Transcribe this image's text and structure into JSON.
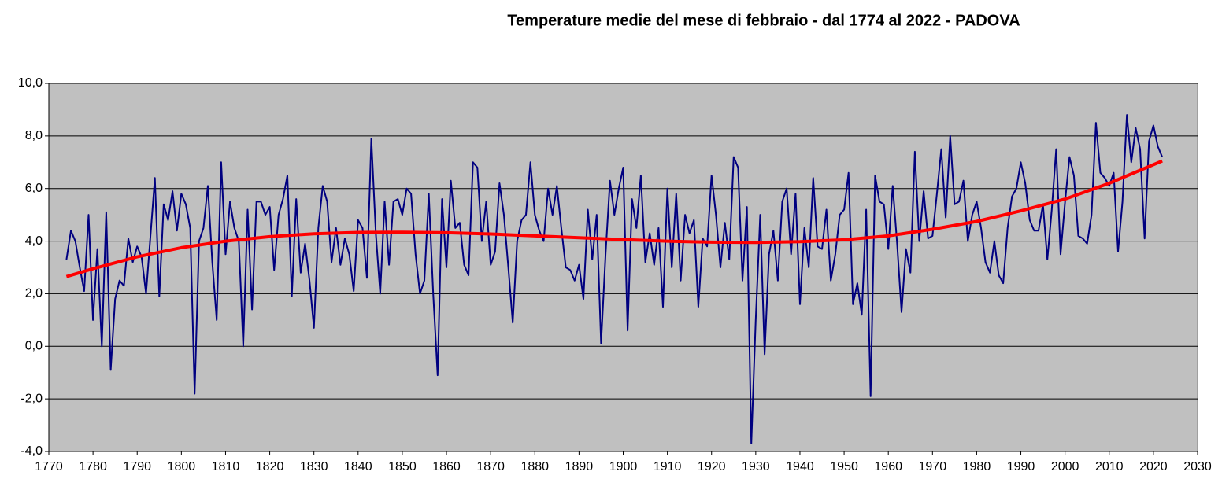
{
  "chart_data": {
    "type": "line",
    "title": "Temperature medie del mese di febbraio - dal 1774 al 2022 - PADOVA",
    "x": [
      1774,
      1775,
      1776,
      1777,
      1778,
      1779,
      1780,
      1781,
      1782,
      1783,
      1784,
      1785,
      1786,
      1787,
      1788,
      1789,
      1790,
      1791,
      1792,
      1793,
      1794,
      1795,
      1796,
      1797,
      1798,
      1799,
      1800,
      1801,
      1802,
      1803,
      1804,
      1805,
      1806,
      1807,
      1808,
      1809,
      1810,
      1811,
      1812,
      1813,
      1814,
      1815,
      1816,
      1817,
      1818,
      1819,
      1820,
      1821,
      1822,
      1823,
      1824,
      1825,
      1826,
      1827,
      1828,
      1829,
      1830,
      1831,
      1832,
      1833,
      1834,
      1835,
      1836,
      1837,
      1838,
      1839,
      1840,
      1841,
      1842,
      1843,
      1844,
      1845,
      1846,
      1847,
      1848,
      1849,
      1850,
      1851,
      1852,
      1853,
      1854,
      1855,
      1856,
      1857,
      1858,
      1859,
      1860,
      1861,
      1862,
      1863,
      1864,
      1865,
      1866,
      1867,
      1868,
      1869,
      1870,
      1871,
      1872,
      1873,
      1874,
      1875,
      1876,
      1877,
      1878,
      1879,
      1880,
      1881,
      1882,
      1883,
      1884,
      1885,
      1886,
      1887,
      1888,
      1889,
      1890,
      1891,
      1892,
      1893,
      1894,
      1895,
      1896,
      1897,
      1898,
      1899,
      1900,
      1901,
      1902,
      1903,
      1904,
      1905,
      1906,
      1907,
      1908,
      1909,
      1910,
      1911,
      1912,
      1913,
      1914,
      1915,
      1916,
      1917,
      1918,
      1919,
      1920,
      1921,
      1922,
      1923,
      1924,
      1925,
      1926,
      1927,
      1928,
      1929,
      1930,
      1931,
      1932,
      1933,
      1934,
      1935,
      1936,
      1937,
      1938,
      1939,
      1940,
      1941,
      1942,
      1943,
      1944,
      1945,
      1946,
      1947,
      1948,
      1949,
      1950,
      1951,
      1952,
      1953,
      1954,
      1955,
      1956,
      1957,
      1958,
      1959,
      1960,
      1961,
      1962,
      1963,
      1964,
      1965,
      1966,
      1967,
      1968,
      1969,
      1970,
      1971,
      1972,
      1973,
      1974,
      1975,
      1976,
      1977,
      1978,
      1979,
      1980,
      1981,
      1982,
      1983,
      1984,
      1985,
      1986,
      1987,
      1988,
      1989,
      1990,
      1991,
      1992,
      1993,
      1994,
      1995,
      1996,
      1997,
      1998,
      1999,
      2000,
      2001,
      2002,
      2003,
      2004,
      2005,
      2006,
      2007,
      2008,
      2009,
      2010,
      2011,
      2012,
      2013,
      2014,
      2015,
      2016,
      2017,
      2018,
      2019,
      2020,
      2021,
      2022
    ],
    "series": [
      {
        "color": "#000080",
        "values": [
          3.3,
          4.4,
          4.0,
          3.0,
          2.1,
          5.0,
          1.0,
          3.7,
          0.0,
          5.1,
          -0.9,
          1.8,
          2.5,
          2.3,
          4.1,
          3.2,
          3.8,
          3.4,
          2.0,
          4.2,
          6.4,
          1.9,
          5.4,
          4.8,
          5.9,
          4.4,
          5.8,
          5.4,
          4.5,
          -1.8,
          4.0,
          4.5,
          6.1,
          3.2,
          1.0,
          7.0,
          3.5,
          5.5,
          4.5,
          4.0,
          0.0,
          5.2,
          1.4,
          5.5,
          5.5,
          5.0,
          5.3,
          2.9,
          5.0,
          5.6,
          6.5,
          1.9,
          5.6,
          2.8,
          3.9,
          2.5,
          0.7,
          4.5,
          6.1,
          5.5,
          3.2,
          4.5,
          3.1,
          4.1,
          3.5,
          2.1,
          4.8,
          4.5,
          2.6,
          7.9,
          4.3,
          2.0,
          5.5,
          3.1,
          5.5,
          5.6,
          5.0,
          6.0,
          5.8,
          3.5,
          2.0,
          2.5,
          5.8,
          2.0,
          -1.1,
          5.6,
          3.0,
          6.3,
          4.5,
          4.7,
          3.1,
          2.7,
          7.0,
          6.8,
          4.0,
          5.5,
          3.1,
          3.6,
          6.2,
          5.0,
          3.0,
          0.9,
          4.0,
          4.8,
          5.0,
          7.0,
          5.0,
          4.4,
          4.0,
          6.0,
          5.0,
          6.1,
          4.5,
          3.0,
          2.9,
          2.5,
          3.1,
          1.8,
          5.2,
          3.3,
          5.0,
          0.1,
          3.5,
          6.3,
          5.0,
          6.0,
          6.8,
          0.6,
          5.6,
          4.5,
          6.5,
          3.2,
          4.3,
          3.1,
          4.5,
          1.5,
          6.0,
          3.0,
          5.8,
          2.5,
          5.0,
          4.3,
          4.8,
          1.5,
          4.1,
          3.8,
          6.5,
          5.0,
          3.0,
          4.7,
          3.3,
          7.2,
          6.8,
          2.5,
          5.3,
          -3.7,
          1.0,
          5.0,
          -0.3,
          3.5,
          4.4,
          2.5,
          5.5,
          6.0,
          3.5,
          5.8,
          1.6,
          4.5,
          3.0,
          6.4,
          3.8,
          3.7,
          5.2,
          2.5,
          3.5,
          5.0,
          5.2,
          6.6,
          1.6,
          2.4,
          1.2,
          5.2,
          -1.9,
          6.5,
          5.5,
          5.4,
          3.7,
          6.1,
          3.9,
          1.3,
          3.7,
          2.8,
          7.4,
          4.0,
          5.9,
          4.1,
          4.2,
          5.8,
          7.5,
          4.9,
          8.0,
          5.4,
          5.5,
          6.3,
          4.0,
          5.0,
          5.5,
          4.5,
          3.2,
          2.8,
          4.0,
          2.7,
          2.4,
          4.5,
          5.7,
          6.0,
          7.0,
          6.2,
          4.8,
          4.4,
          4.4,
          5.4,
          3.3,
          5.2,
          7.5,
          3.5,
          5.5,
          7.2,
          6.5,
          4.2,
          4.1,
          3.9,
          5.0,
          8.5,
          6.6,
          6.4,
          6.1,
          6.6,
          3.6,
          5.5,
          8.8,
          7.0,
          8.3,
          7.5,
          4.1,
          7.8,
          8.4,
          7.6,
          7.2
        ]
      },
      {
        "color": "#ff0000",
        "x": [
          1774,
          1780,
          1790,
          1800,
          1810,
          1820,
          1830,
          1840,
          1850,
          1860,
          1870,
          1880,
          1890,
          1900,
          1910,
          1920,
          1930,
          1940,
          1950,
          1960,
          1970,
          1980,
          1990,
          2000,
          2010,
          2022
        ],
        "values": [
          2.65,
          2.95,
          3.4,
          3.75,
          4.0,
          4.17,
          4.28,
          4.33,
          4.34,
          4.32,
          4.27,
          4.2,
          4.13,
          4.06,
          4.0,
          3.96,
          3.95,
          3.98,
          4.05,
          4.2,
          4.45,
          4.75,
          5.15,
          5.6,
          6.2,
          7.05
        ]
      }
    ],
    "xlim": [
      1770,
      2030
    ],
    "xticks": [
      1770,
      1780,
      1790,
      1800,
      1810,
      1820,
      1830,
      1840,
      1850,
      1860,
      1870,
      1880,
      1890,
      1900,
      1910,
      1920,
      1930,
      1940,
      1950,
      1960,
      1970,
      1980,
      1990,
      2000,
      2010,
      2020,
      2030
    ],
    "ylim": [
      -4,
      10
    ],
    "yticks": [
      {
        "value": -4,
        "label": "-4,0"
      },
      {
        "value": -2,
        "label": "-2,0"
      },
      {
        "value": 0,
        "label": "0,0"
      },
      {
        "value": 2,
        "label": "2,0"
      },
      {
        "value": 4,
        "label": "4,0"
      },
      {
        "value": 6,
        "label": "6,0"
      },
      {
        "value": 8,
        "label": "8,0"
      },
      {
        "value": 10,
        "label": "10,0"
      }
    ],
    "grid": true,
    "plot_background": "#c0c0c0"
  }
}
